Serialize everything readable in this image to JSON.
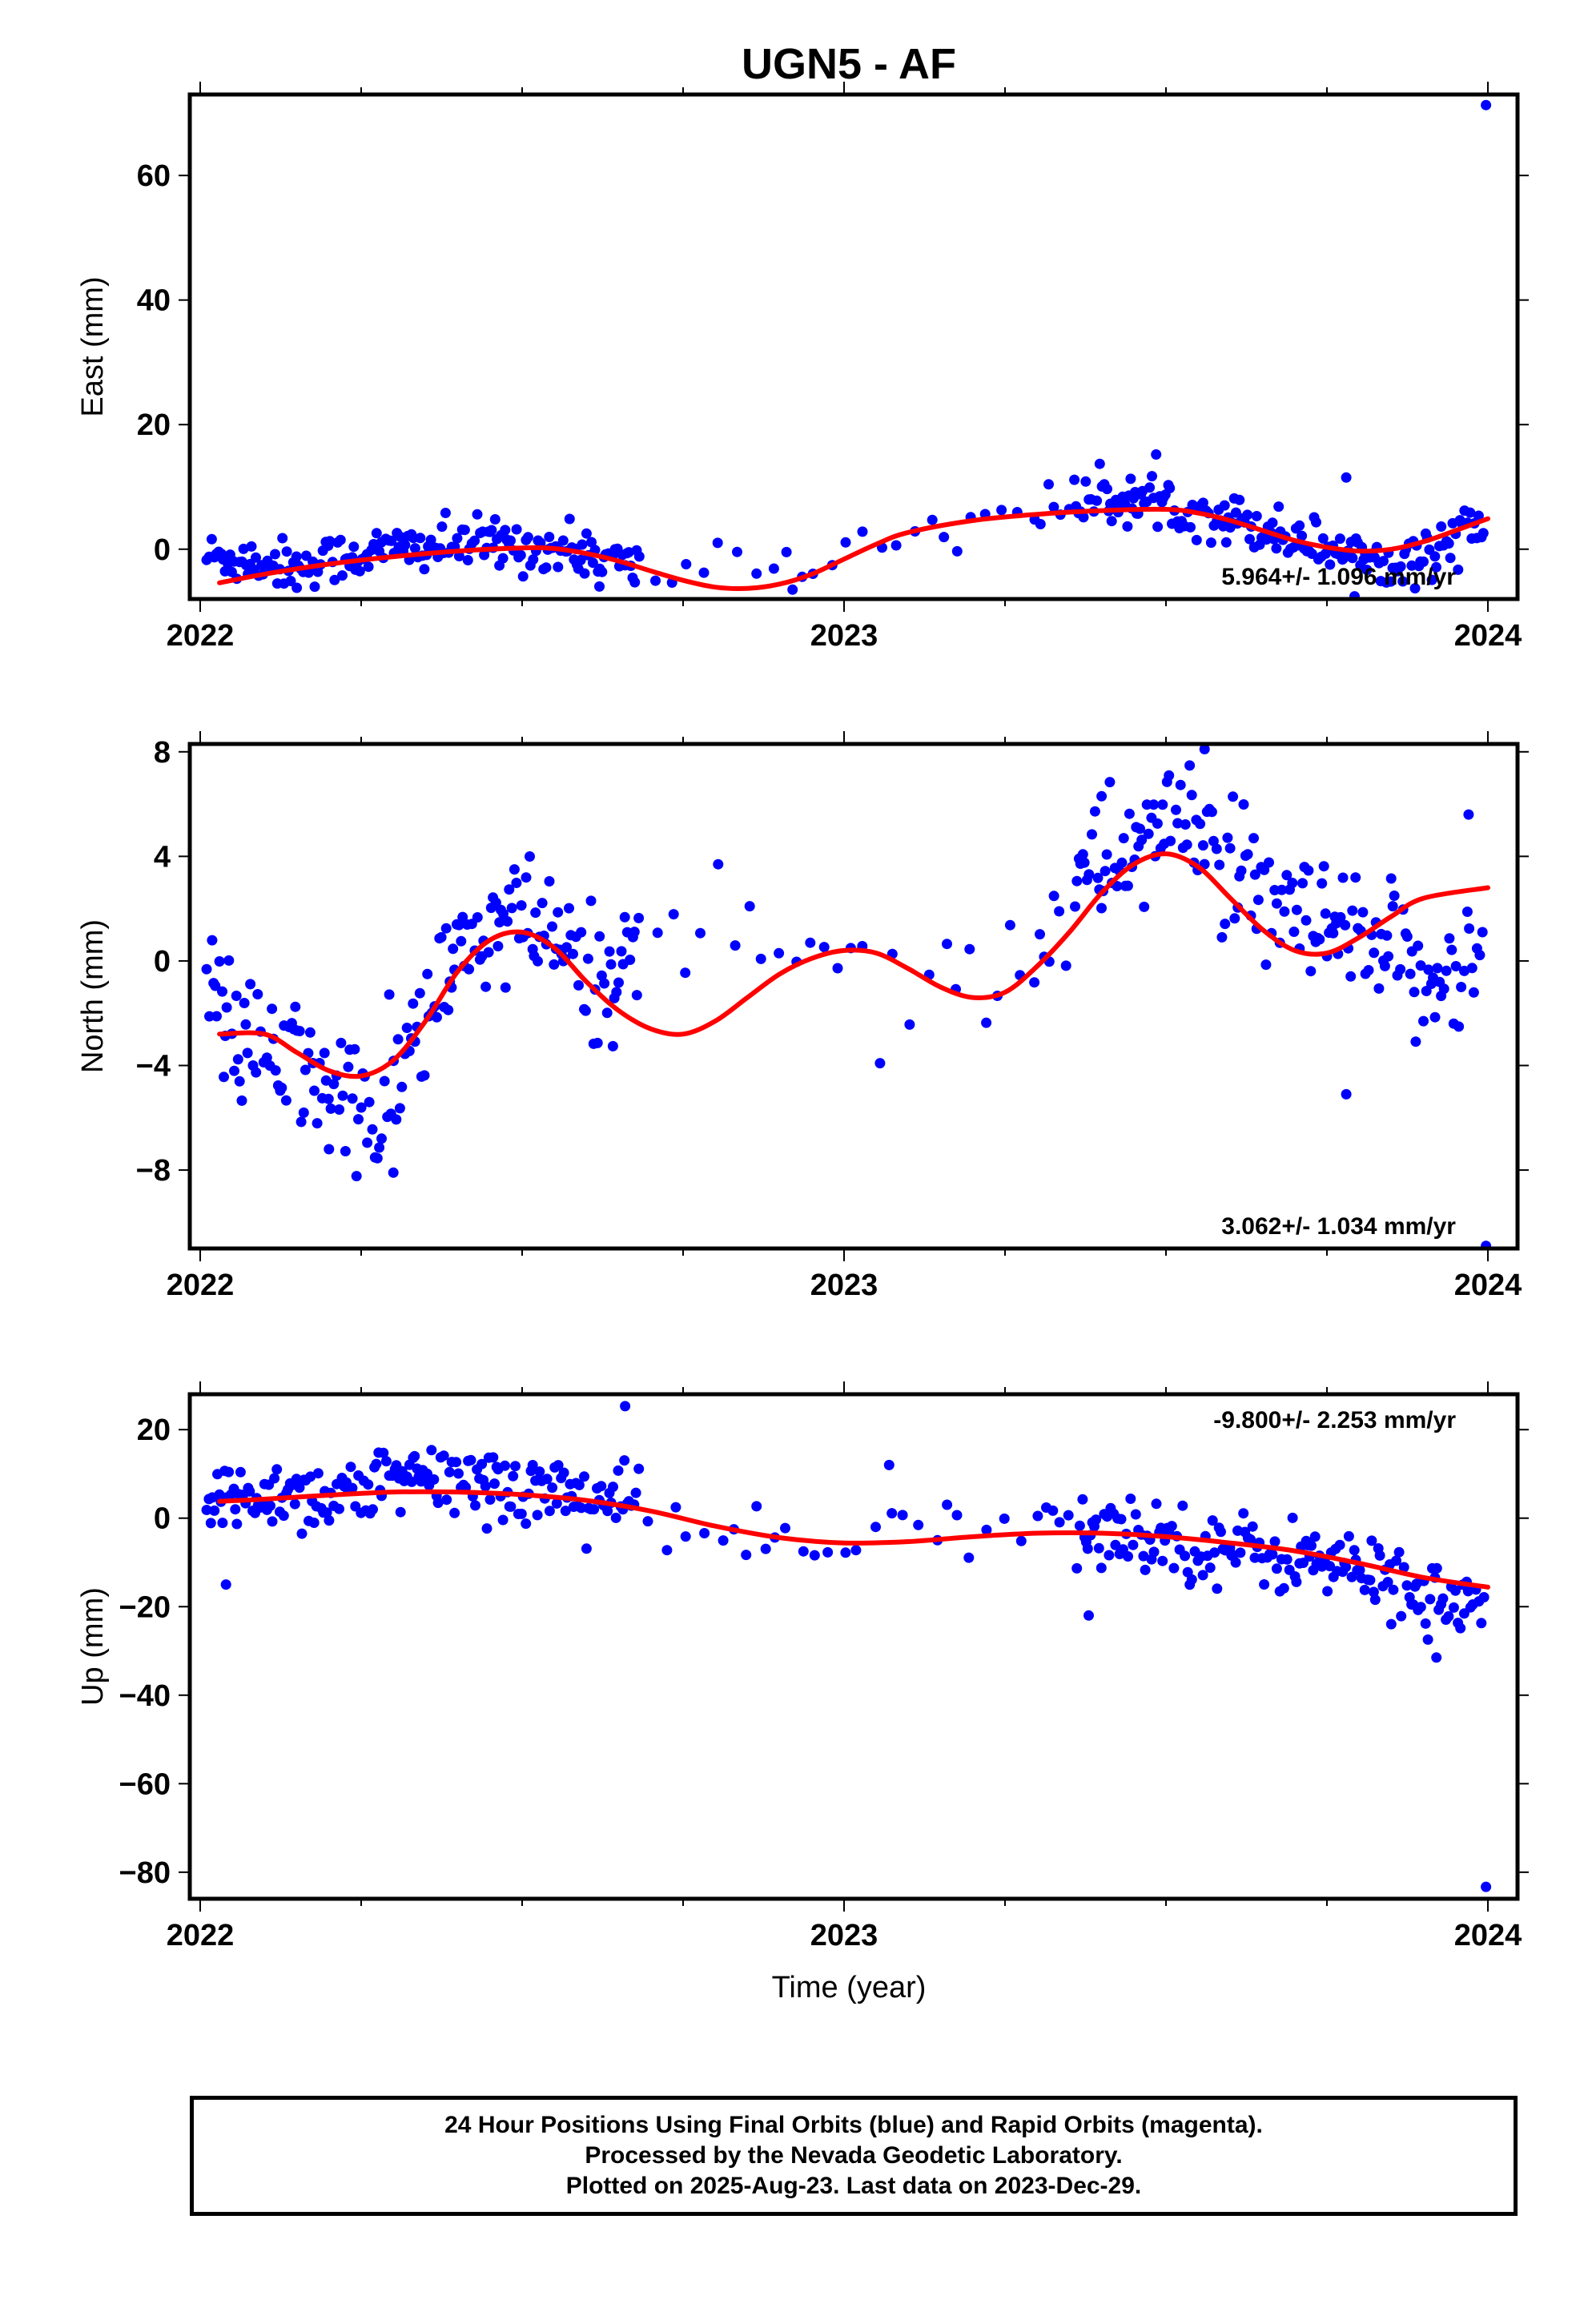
{
  "title": "UGN5 - AF",
  "xlabel": "Time (year)",
  "footer": {
    "line1": "24 Hour Positions Using Final Orbits (blue) and Rapid Orbits (magenta).",
    "line2": "Processed by the Nevada Geodetic Laboratory.",
    "line3": "Plotted on 2025-Aug-23. Last data on 2023-Dec-29."
  },
  "colors": {
    "points": "#0000ff",
    "fit": "#ff0000",
    "frame": "#000000"
  },
  "chart_data": [
    {
      "type": "scatter",
      "component": "east",
      "ylabel": "East (mm)",
      "xlim": [
        2022.0,
        2024.0
      ],
      "ylim": [
        -8,
        73
      ],
      "x_ticks": [
        2022,
        2023,
        2024
      ],
      "y_ticks": [
        0,
        20,
        40,
        60
      ],
      "rate_text": "5.964+/- 1.096 mm/yr",
      "rate_position": "bottom-right",
      "fit": [
        [
          2022.03,
          -5.4
        ],
        [
          2022.1,
          -4.0
        ],
        [
          2022.2,
          -2.4
        ],
        [
          2022.3,
          -1.2
        ],
        [
          2022.4,
          -0.3
        ],
        [
          2022.5,
          0.2
        ],
        [
          2022.55,
          0.1
        ],
        [
          2022.6,
          -0.7
        ],
        [
          2022.65,
          -1.9
        ],
        [
          2022.7,
          -3.5
        ],
        [
          2022.75,
          -5.0
        ],
        [
          2022.8,
          -6.1
        ],
        [
          2022.85,
          -6.3
        ],
        [
          2022.9,
          -5.6
        ],
        [
          2022.95,
          -4.0
        ],
        [
          2023.0,
          -1.6
        ],
        [
          2023.05,
          0.8
        ],
        [
          2023.1,
          2.7
        ],
        [
          2023.2,
          4.6
        ],
        [
          2023.3,
          5.6
        ],
        [
          2023.4,
          6.2
        ],
        [
          2023.5,
          6.4
        ],
        [
          2023.55,
          5.8
        ],
        [
          2023.6,
          4.6
        ],
        [
          2023.65,
          3.0
        ],
        [
          2023.7,
          1.4
        ],
        [
          2023.75,
          0.3
        ],
        [
          2023.8,
          -0.3
        ],
        [
          2023.85,
          0.0
        ],
        [
          2023.9,
          1.2
        ],
        [
          2023.95,
          3.0
        ],
        [
          2024.0,
          4.9
        ]
      ],
      "anchors": [
        [
          2022.0,
          -1.0
        ],
        [
          2022.15,
          -2.5
        ],
        [
          2022.3,
          0.0
        ],
        [
          2022.45,
          1.0
        ],
        [
          2022.6,
          -0.5
        ],
        [
          2022.7,
          -4.0
        ],
        [
          2022.82,
          -1.0
        ],
        [
          2022.88,
          -2.0
        ],
        [
          2022.93,
          -4.5
        ],
        [
          2023.02,
          1.5
        ],
        [
          2023.15,
          3.5
        ],
        [
          2023.3,
          6.5
        ],
        [
          2023.42,
          8.0
        ],
        [
          2023.5,
          7.5
        ],
        [
          2023.6,
          5.0
        ],
        [
          2023.7,
          2.0
        ],
        [
          2023.8,
          -1.0
        ],
        [
          2023.9,
          -2.0
        ],
        [
          2023.97,
          5.0
        ],
        [
          2024.0,
          1.0
        ]
      ],
      "extreme_points": [
        [
          2023.997,
          71.3
        ],
        [
          2022.92,
          -6.5
        ],
        [
          2022.15,
          -6.2
        ],
        [
          2022.62,
          -6.0
        ],
        [
          2023.78,
          11.5
        ]
      ],
      "point_spread": 2.0
    },
    {
      "type": "scatter",
      "component": "north",
      "ylabel": "North (mm)",
      "xlim": [
        2022.0,
        2024.0
      ],
      "ylim": [
        -11,
        8.3
      ],
      "x_ticks": [
        2022,
        2023,
        2024
      ],
      "y_ticks": [
        -8,
        -4,
        0,
        4,
        8
      ],
      "rate_text": "3.062+/- 1.034 mm/yr",
      "rate_position": "bottom-right",
      "fit": [
        [
          2022.03,
          -2.8
        ],
        [
          2022.1,
          -2.8
        ],
        [
          2022.15,
          -3.5
        ],
        [
          2022.2,
          -4.2
        ],
        [
          2022.25,
          -4.4
        ],
        [
          2022.3,
          -3.8
        ],
        [
          2022.35,
          -2.3
        ],
        [
          2022.4,
          -0.4
        ],
        [
          2022.45,
          0.8
        ],
        [
          2022.5,
          1.1
        ],
        [
          2022.55,
          0.5
        ],
        [
          2022.6,
          -0.8
        ],
        [
          2022.65,
          -1.9
        ],
        [
          2022.7,
          -2.6
        ],
        [
          2022.75,
          -2.8
        ],
        [
          2022.8,
          -2.3
        ],
        [
          2022.85,
          -1.4
        ],
        [
          2022.9,
          -0.5
        ],
        [
          2022.95,
          0.1
        ],
        [
          2023.0,
          0.4
        ],
        [
          2023.05,
          0.3
        ],
        [
          2023.1,
          -0.3
        ],
        [
          2023.15,
          -1.0
        ],
        [
          2023.2,
          -1.4
        ],
        [
          2023.25,
          -1.2
        ],
        [
          2023.3,
          -0.2
        ],
        [
          2023.35,
          1.1
        ],
        [
          2023.4,
          2.6
        ],
        [
          2023.45,
          3.7
        ],
        [
          2023.5,
          4.1
        ],
        [
          2023.55,
          3.6
        ],
        [
          2023.6,
          2.4
        ],
        [
          2023.65,
          1.2
        ],
        [
          2023.7,
          0.4
        ],
        [
          2023.75,
          0.3
        ],
        [
          2023.8,
          0.9
        ],
        [
          2023.85,
          1.7
        ],
        [
          2023.9,
          2.4
        ],
        [
          2024.0,
          2.8
        ]
      ],
      "anchors": [
        [
          2022.02,
          -1.5
        ],
        [
          2022.08,
          -3.5
        ],
        [
          2022.15,
          -4.0
        ],
        [
          2022.22,
          -5.0
        ],
        [
          2022.28,
          -6.5
        ],
        [
          2022.33,
          -3.0
        ],
        [
          2022.4,
          0.0
        ],
        [
          2022.47,
          1.5
        ],
        [
          2022.55,
          1.0
        ],
        [
          2022.6,
          -1.0
        ],
        [
          2022.72,
          1.0
        ],
        [
          2022.85,
          1.5
        ],
        [
          2022.95,
          0.5
        ],
        [
          2023.1,
          -0.5
        ],
        [
          2023.2,
          -1.0
        ],
        [
          2023.3,
          1.0
        ],
        [
          2023.4,
          3.5
        ],
        [
          2023.48,
          5.0
        ],
        [
          2023.55,
          5.5
        ],
        [
          2023.62,
          2.5
        ],
        [
          2023.7,
          1.5
        ],
        [
          2023.8,
          0.5
        ],
        [
          2023.9,
          -0.5
        ],
        [
          2023.98,
          0.0
        ]
      ],
      "extreme_points": [
        [
          2023.997,
          -10.9
        ],
        [
          2023.56,
          8.1
        ],
        [
          2023.78,
          -5.1
        ],
        [
          2022.3,
          -8.1
        ],
        [
          2022.2,
          -7.2
        ],
        [
          2023.4,
          6.3
        ],
        [
          2023.97,
          5.6
        ]
      ],
      "point_spread": 1.3
    },
    {
      "type": "scatter",
      "component": "up",
      "ylabel": "Up (mm)",
      "xlim": [
        2022.0,
        2024.0
      ],
      "ylim": [
        -86,
        28
      ],
      "x_ticks": [
        2022,
        2023,
        2024
      ],
      "y_ticks": [
        -80,
        -60,
        -40,
        -20,
        0,
        20
      ],
      "rate_text": "-9.800+/- 2.253 mm/yr",
      "rate_position": "top-right",
      "fit": [
        [
          2022.03,
          3.8
        ],
        [
          2022.1,
          4.3
        ],
        [
          2022.2,
          5.2
        ],
        [
          2022.3,
          5.9
        ],
        [
          2022.4,
          5.9
        ],
        [
          2022.5,
          5.3
        ],
        [
          2022.6,
          4.0
        ],
        [
          2022.7,
          1.6
        ],
        [
          2022.8,
          -1.8
        ],
        [
          2022.9,
          -4.4
        ],
        [
          2023.0,
          -5.6
        ],
        [
          2023.1,
          -5.3
        ],
        [
          2023.2,
          -4.2
        ],
        [
          2023.3,
          -3.4
        ],
        [
          2023.4,
          -3.4
        ],
        [
          2023.5,
          -4.2
        ],
        [
          2023.6,
          -5.6
        ],
        [
          2023.7,
          -7.4
        ],
        [
          2023.8,
          -10.2
        ],
        [
          2023.9,
          -13.4
        ],
        [
          2024.0,
          -15.6
        ]
      ],
      "anchors": [
        [
          2022.02,
          3.0
        ],
        [
          2022.1,
          6.0
        ],
        [
          2022.2,
          5.0
        ],
        [
          2022.3,
          8.0
        ],
        [
          2022.4,
          9.0
        ],
        [
          2022.5,
          7.0
        ],
        [
          2022.6,
          5.0
        ],
        [
          2022.7,
          2.0
        ],
        [
          2022.85,
          -5.0
        ],
        [
          2022.95,
          -8.0
        ],
        [
          2023.05,
          -4.0
        ],
        [
          2023.15,
          -2.0
        ],
        [
          2023.3,
          -4.0
        ],
        [
          2023.45,
          -3.0
        ],
        [
          2023.55,
          -6.0
        ],
        [
          2023.65,
          -8.0
        ],
        [
          2023.75,
          -10.0
        ],
        [
          2023.85,
          -14.0
        ],
        [
          2023.92,
          -18.0
        ],
        [
          2023.97,
          -20.0
        ]
      ],
      "extreme_points": [
        [
          2023.997,
          -83.3
        ],
        [
          2022.66,
          25.3
        ],
        [
          2022.04,
          -15.0
        ],
        [
          2023.92,
          -31.5
        ],
        [
          2023.07,
          12.0
        ],
        [
          2023.38,
          -22.0
        ]
      ],
      "point_spread": 4.2
    }
  ]
}
